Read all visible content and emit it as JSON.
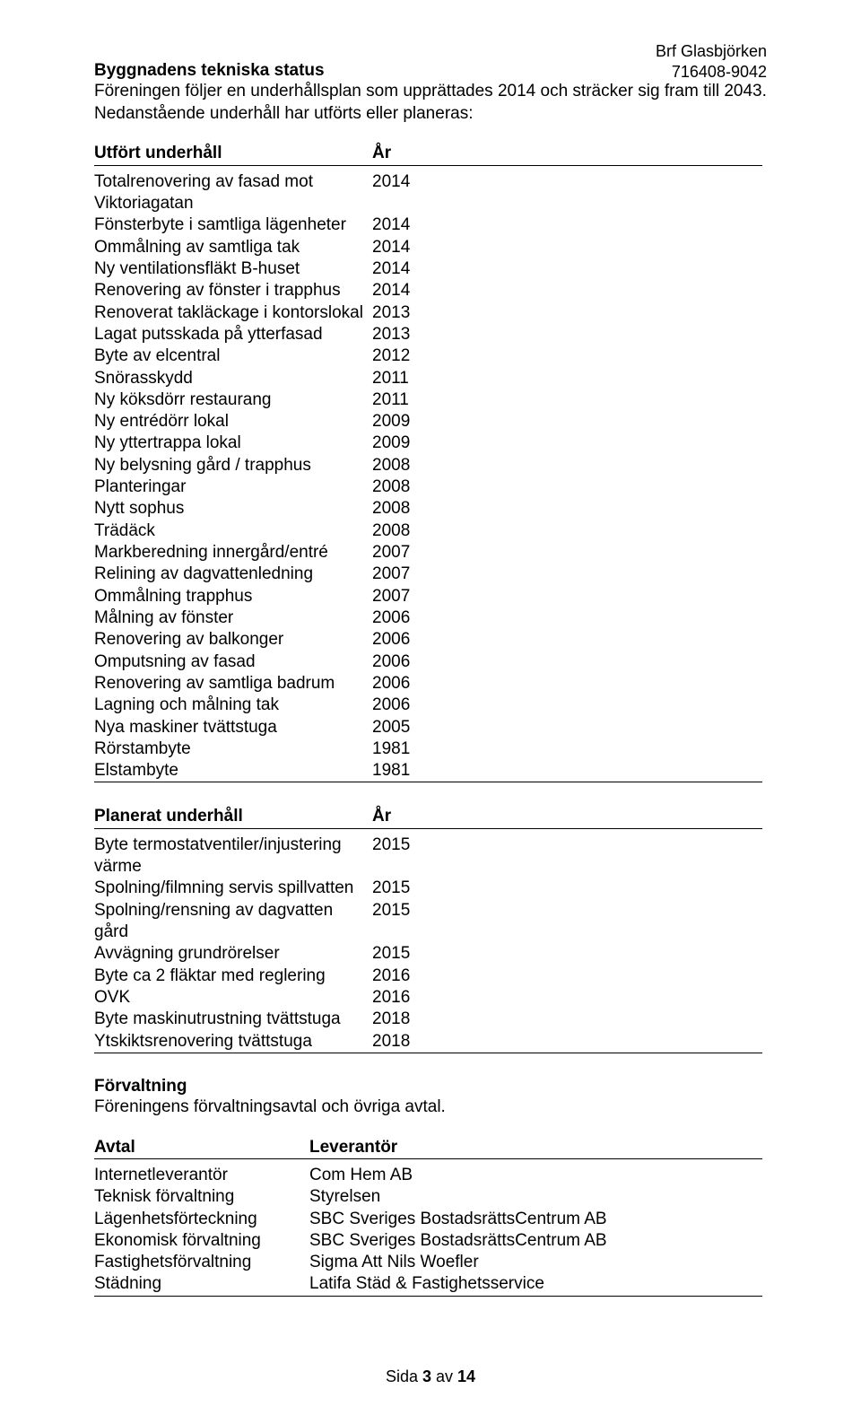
{
  "header": {
    "org_name": "Brf Glasbjörken",
    "org_number": "716408-9042"
  },
  "status": {
    "heading": "Byggnadens tekniska status",
    "line1": "Föreningen följer en underhållsplan som upprättades 2014 och sträcker sig fram till 2043.",
    "line2": "Nedanstående underhåll har utförts eller planeras:"
  },
  "utfort": {
    "header_label": "Utfört underhåll",
    "header_year": "År",
    "rows": [
      {
        "label": "Totalrenovering av fasad mot Viktoriagatan",
        "year": "2014"
      },
      {
        "label": "Fönsterbyte i samtliga lägenheter",
        "year": "2014"
      },
      {
        "label": "Ommålning av samtliga tak",
        "year": "2014"
      },
      {
        "label": "Ny ventilationsfläkt B-huset",
        "year": "2014"
      },
      {
        "label": "Renovering av fönster i trapphus",
        "year": "2014"
      },
      {
        "label": "Renoverat takläckage i kontorslokal",
        "year": "2013"
      },
      {
        "label": "Lagat putsskada på ytterfasad",
        "year": "2013"
      },
      {
        "label": "Byte av elcentral",
        "year": "2012"
      },
      {
        "label": "Snörasskydd",
        "year": "2011"
      },
      {
        "label": "Ny köksdörr restaurang",
        "year": "2011"
      },
      {
        "label": "Ny entrédörr lokal",
        "year": "2009"
      },
      {
        "label": "Ny yttertrappa lokal",
        "year": "2009"
      },
      {
        "label": "Ny belysning gård / trapphus",
        "year": "2008"
      },
      {
        "label": "Planteringar",
        "year": "2008"
      },
      {
        "label": "Nytt sophus",
        "year": "2008"
      },
      {
        "label": "Trädäck",
        "year": "2008"
      },
      {
        "label": "Markberedning innergård/entré",
        "year": "2007"
      },
      {
        "label": "Relining av dagvattenledning",
        "year": "2007"
      },
      {
        "label": "Ommålning trapphus",
        "year": "2007"
      },
      {
        "label": "Målning av fönster",
        "year": "2006"
      },
      {
        "label": "Renovering av balkonger",
        "year": "2006"
      },
      {
        "label": "Omputsning av fasad",
        "year": "2006"
      },
      {
        "label": "Renovering av samtliga badrum",
        "year": "2006"
      },
      {
        "label": "Lagning och målning tak",
        "year": "2006"
      },
      {
        "label": "Nya maskiner tvättstuga",
        "year": "2005"
      },
      {
        "label": "Rörstambyte",
        "year": "1981"
      },
      {
        "label": "Elstambyte",
        "year": "1981"
      }
    ]
  },
  "planerat": {
    "header_label": "Planerat underhåll",
    "header_year": "År",
    "rows": [
      {
        "label": "Byte termostatventiler/injustering värme",
        "year": "2015"
      },
      {
        "label": "Spolning/filmning servis spillvatten",
        "year": "2015"
      },
      {
        "label": "Spolning/rensning av dagvatten gård",
        "year": "2015"
      },
      {
        "label": "Avvägning grundrörelser",
        "year": "2015"
      },
      {
        "label": "Byte ca 2 fläktar med reglering",
        "year": "2016"
      },
      {
        "label": "OVK",
        "year": "2016"
      },
      {
        "label": "Byte maskinutrustning tvättstuga",
        "year": "2018"
      },
      {
        "label": "Ytskiktsrenovering tvättstuga",
        "year": "2018"
      }
    ]
  },
  "forvaltning": {
    "heading": "Förvaltning",
    "text": "Föreningens förvaltningsavtal och övriga avtal."
  },
  "avtal": {
    "header_label": "Avtal",
    "header_value": "Leverantör",
    "rows": [
      {
        "label": "Internetleverantör",
        "value": "Com Hem AB"
      },
      {
        "label": "Teknisk förvaltning",
        "value": "Styrelsen"
      },
      {
        "label": "Lägenhetsförteckning",
        "value": "SBC Sveriges BostadsrättsCentrum AB"
      },
      {
        "label": "Ekonomisk förvaltning",
        "value": "SBC Sveriges BostadsrättsCentrum AB"
      },
      {
        "label": "Fastighetsförvaltning",
        "value": "Sigma Att Nils Woefler"
      },
      {
        "label": "Städning",
        "value": "Latifa Städ & Fastighetsservice"
      }
    ]
  },
  "footer": {
    "prefix": "Sida ",
    "current": "3",
    "sep": " av ",
    "total": "14"
  }
}
